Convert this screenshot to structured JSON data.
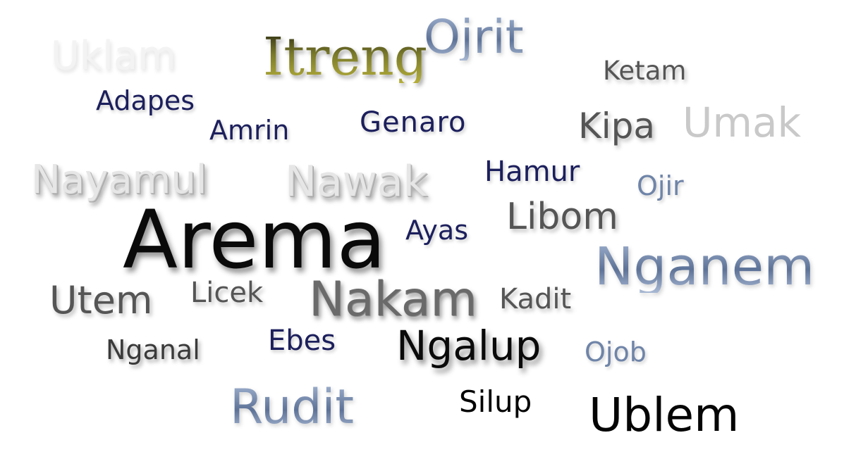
{
  "words": [
    {
      "text": "Uklam",
      "style": "ghost"
    },
    {
      "text": "Itreng",
      "style": "olive"
    },
    {
      "text": "Ojrit",
      "style": "steelg"
    },
    {
      "text": "Ketam",
      "style": "gray"
    },
    {
      "text": "Adapes",
      "style": "navy"
    },
    {
      "text": "Amrin",
      "style": "navy"
    },
    {
      "text": "Genaro",
      "style": "navy"
    },
    {
      "text": "Kipa",
      "style": "gray"
    },
    {
      "text": "Umak",
      "style": "lgray"
    },
    {
      "text": "Nayamul",
      "style": "silver"
    },
    {
      "text": "Nawak",
      "style": "silver"
    },
    {
      "text": "Hamur",
      "style": "navy"
    },
    {
      "text": "Ojir",
      "style": "steel"
    },
    {
      "text": "Libom",
      "style": "gray"
    },
    {
      "text": "Ayas",
      "style": "navy"
    },
    {
      "text": "Arema",
      "style": "dark"
    },
    {
      "text": "Nganem",
      "style": "steelg"
    },
    {
      "text": "Utem",
      "style": "gray"
    },
    {
      "text": "Licek",
      "style": "gray"
    },
    {
      "text": "Nakam",
      "style": "embossed"
    },
    {
      "text": "Kadit",
      "style": "gray"
    },
    {
      "text": "Ebes",
      "style": "navy"
    },
    {
      "text": "Nganal",
      "style": "gray2"
    },
    {
      "text": "Ngalup",
      "style": "dark"
    },
    {
      "text": "Ojob",
      "style": "steel"
    },
    {
      "text": "Rudit",
      "style": "steelg"
    },
    {
      "text": "Silup",
      "style": "black"
    },
    {
      "text": "Ublem",
      "style": "black"
    }
  ]
}
